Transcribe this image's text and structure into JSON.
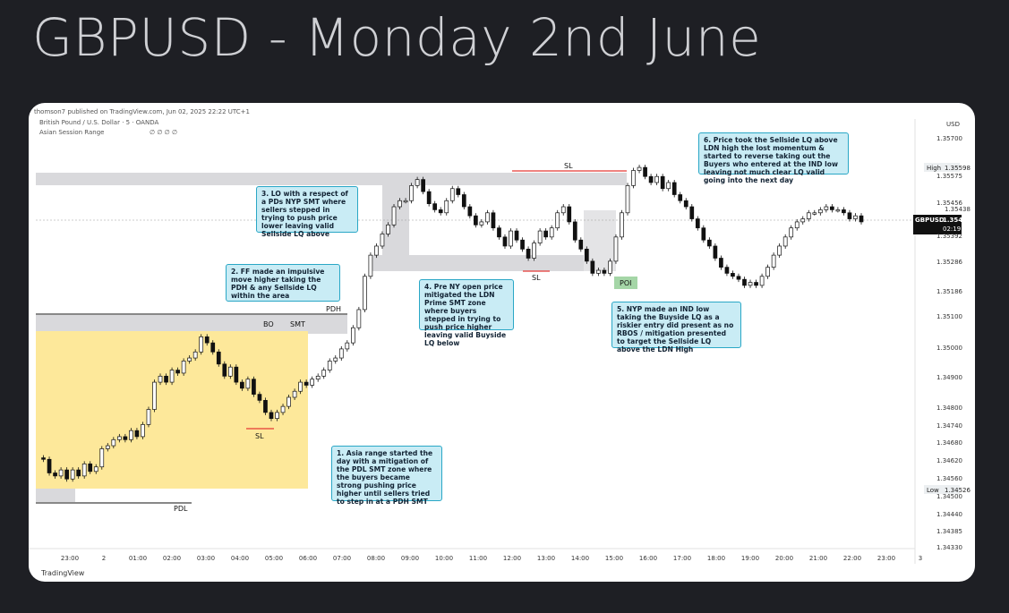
{
  "title": "GBPUSD - Monday 2nd June",
  "header": {
    "published": "thomson7 published on TradingView.com, Jun 02, 2025 22:22 UTC+1",
    "symbol": "British Pound / U.S. Dollar · 5 · OANDA",
    "indicator": "Asian Session Range",
    "indicator_values": "∅ ∅ ∅ ∅"
  },
  "axis": {
    "currency": "USD",
    "prices": [
      "1.35700",
      "1.35575",
      "1.35456",
      "1.35392",
      "1.35286",
      "1.35186",
      "1.35100",
      "1.35000",
      "1.34900",
      "1.34800",
      "1.34740",
      "1.34680",
      "1.34620",
      "1.34560",
      "1.34500",
      "1.34440",
      "1.34385",
      "1.34330"
    ],
    "times": [
      "23:00",
      "2",
      "01:00",
      "02:00",
      "03:00",
      "04:00",
      "05:00",
      "06:00",
      "07:00",
      "08:00",
      "09:00",
      "10:00",
      "11:00",
      "12:00",
      "13:00",
      "14:00",
      "15:00",
      "16:00",
      "17:00",
      "18:00",
      "19:00",
      "20:00",
      "21:00",
      "22:00",
      "23:00",
      "3"
    ],
    "high_label": "High",
    "high_value": "1.35598",
    "low_label": "Low",
    "low_value": "1.34526",
    "ticker": "GBPUSD",
    "last_price": "1.35428",
    "countdown": "02:19",
    "mid_value": "1.35438"
  },
  "labels": {
    "sl_top": "SL",
    "sl_mid": "SL",
    "sl_low": "SL",
    "pdh": "PDH",
    "pdl": "PDL",
    "bo": "BO",
    "smt": "SMT",
    "poi": "POI"
  },
  "notes": {
    "n1": "1. Asia range started the day with a mitigation of the PDL SMT zone where the buyers became strong pushing price higher until sellers tried to step in at a PDH SMT",
    "n2": "2. FF made an impulsive move higher taking the PDH & any Sellside LQ within the area",
    "n3": "3. LO with a respect of a PDs NYP SMT where sellers stepped in trying to push price lower leaving valid Sellside LQ above",
    "n4": "4. Pre NY open price mitigated the LDN Prime SMT zone where buyers stepped in trying to push price higher leaving valid Buyside LQ below",
    "n5": "5. NYP made an IND low taking the Buyside LQ as a riskier entry did present as no RBOS / mitigation presented to target the Sellside LQ above the LDN High",
    "n6": "6. Price took the Sellside LQ above LDN high the lost momentum & started to reverse taking out the Buyers who entered at the IND low leaving not much clear LQ valid going into the next day"
  },
  "footer": {
    "brand": "TradingView"
  },
  "colors": {
    "up": "#26a69a",
    "down": "#111111",
    "asia": "#fde89a",
    "zone": "#d9d9dc",
    "sl": "#e53935",
    "note_bg": "#c9ecf5",
    "note_border": "#2aa7c6",
    "poi": "#a5d6a7"
  },
  "chart_data": {
    "type": "line",
    "series": [
      {
        "values": [
          1.3463,
          1.34625,
          1.3458,
          1.3457,
          1.3459,
          1.3456,
          1.3459,
          1.3457,
          1.3461,
          1.34585,
          1.346,
          1.3466,
          1.3467,
          1.3469,
          1.347,
          1.3469,
          1.3472,
          1.347,
          1.3474,
          1.3479,
          1.3488,
          1.349,
          1.3488,
          1.3492,
          1.3491,
          1.3495,
          1.3496,
          1.3498,
          1.3503,
          1.3501,
          1.3498,
          1.3494,
          1.349,
          1.3493,
          1.3488,
          1.3486,
          1.3489,
          1.3484,
          1.3482,
          1.3478,
          1.3476,
          1.3478,
          1.348,
          1.3483,
          1.3485,
          1.3488,
          1.3487,
          1.3489,
          1.349,
          1.3492,
          1.3495,
          1.3496,
          1.3499,
          1.3501,
          1.3506,
          1.3512,
          1.3523,
          1.353,
          1.3533,
          1.3537,
          1.354,
          1.3546,
          1.3548,
          1.3548,
          1.3553,
          1.3555,
          1.3551,
          1.3547,
          1.3545,
          1.3544,
          1.3548,
          1.3552,
          1.355,
          1.3546,
          1.3543,
          1.354,
          1.3541,
          1.3544,
          1.3539,
          1.3536,
          1.3533,
          1.3538,
          1.3535,
          1.3532,
          1.3529,
          1.3534,
          1.3538,
          1.3536,
          1.3539,
          1.3544,
          1.3546,
          1.3541,
          1.3535,
          1.3532,
          1.3528,
          1.3524,
          1.3525,
          1.3524,
          1.3528,
          1.3536,
          1.3544,
          1.3553,
          1.3558,
          1.3559,
          1.3556,
          1.3554,
          1.3556,
          1.3552,
          1.3554,
          1.355,
          1.3548,
          1.3546,
          1.3542,
          1.3539,
          1.3535,
          1.3533,
          1.3529,
          1.3526,
          1.3524,
          1.3523,
          1.3522,
          1.352,
          1.3521,
          1.352,
          1.3523,
          1.3526,
          1.353,
          1.3533,
          1.3536,
          1.3539,
          1.3541,
          1.3542,
          1.3544,
          1.3544,
          1.3545,
          1.3546,
          1.3545,
          1.3545,
          1.3544,
          1.3542,
          1.3543,
          1.3541
        ]
      }
    ],
    "ylim": [
      1.3433,
      1.3575
    ]
  }
}
